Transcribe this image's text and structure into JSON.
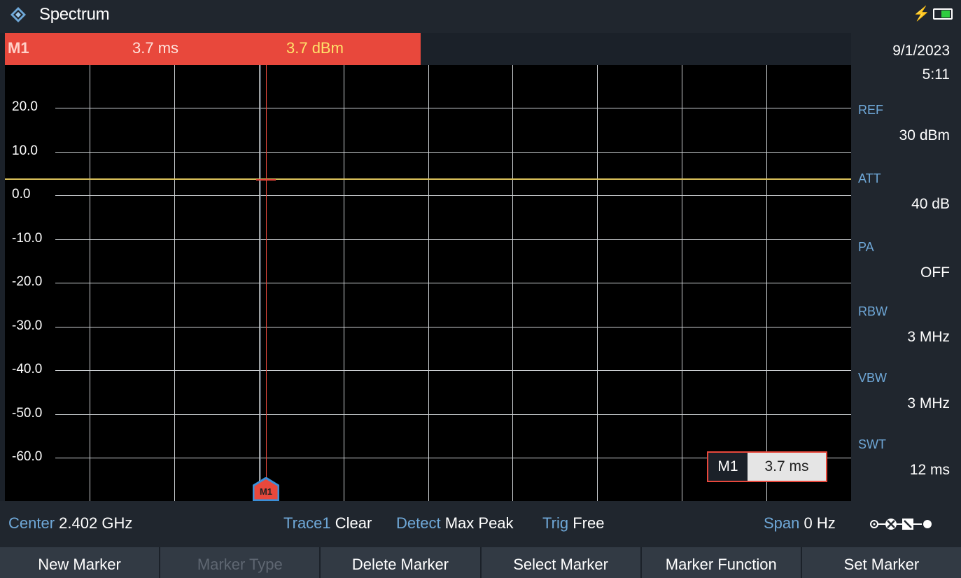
{
  "titlebar": {
    "title": "Spectrum"
  },
  "marker_readout": {
    "label": "M1",
    "x_value": "3.7 ms",
    "y_value": "3.7 dBm"
  },
  "side_panel": {
    "date": "9/1/2023",
    "time": "5:11",
    "params": [
      {
        "name": "REF",
        "value": "30 dBm"
      },
      {
        "name": "ATT",
        "value": "40 dB"
      },
      {
        "name": "PA",
        "value": "OFF"
      },
      {
        "name": "RBW",
        "value": "3 MHz"
      },
      {
        "name": "VBW",
        "value": "3 MHz"
      },
      {
        "name": "SWT",
        "value": "12 ms"
      }
    ]
  },
  "chart_data": {
    "type": "line",
    "y_ticks": [
      "20.0",
      "10.0",
      "0.0",
      "-10.0",
      "-20.0",
      "-30.0",
      "-40.0",
      "-50.0",
      "-60.0"
    ],
    "ylim": [
      -70,
      30
    ],
    "x_range_ms": [
      0,
      12
    ],
    "grid": true,
    "series": [
      {
        "y_constant": 3.7
      }
    ],
    "marker": {
      "label": "M1",
      "x": 3.7,
      "y": 3.7
    }
  },
  "marker_box": {
    "label": "M1",
    "value": "3.7 ms"
  },
  "statusbar": {
    "center_label": "Center",
    "center_value": "2.402 GHz",
    "trace_label": "Trace1",
    "trace_value": "Clear",
    "detect_label": "Detect",
    "detect_value": "Max Peak",
    "trig_label": "Trig",
    "trig_value": "Free",
    "span_label": "Span",
    "span_value": "0 Hz"
  },
  "softkeys": [
    {
      "label": "New Marker",
      "enabled": true
    },
    {
      "label": "Marker Type",
      "enabled": false
    },
    {
      "label": "Delete Marker",
      "enabled": true
    },
    {
      "label": "Select Marker",
      "enabled": true
    },
    {
      "label": "Marker Function",
      "enabled": true
    },
    {
      "label": "Set Marker",
      "enabled": true
    }
  ],
  "colors": {
    "marker": "#e8483c",
    "trace": "#d9c05a",
    "param_label": "#6fa8d8"
  }
}
